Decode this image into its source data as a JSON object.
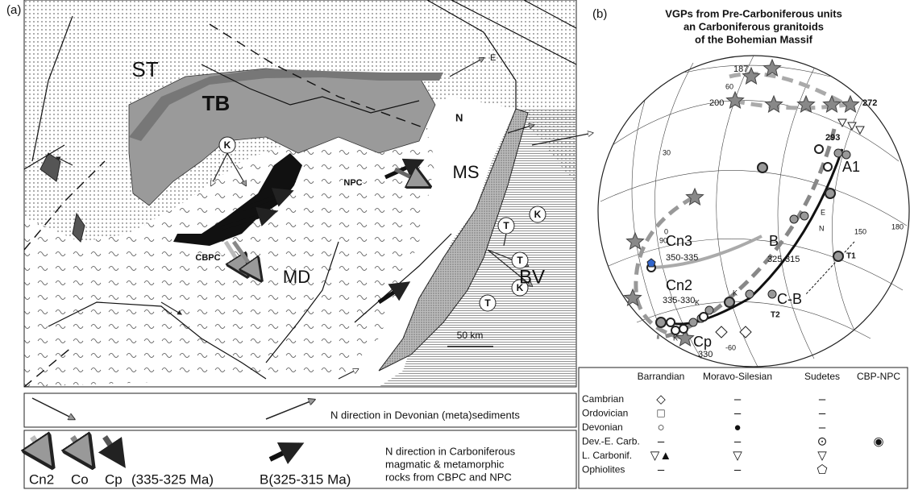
{
  "panel_a": {
    "label": "(a)",
    "regions": [
      "ST",
      "TB",
      "MS",
      "BV",
      "MD",
      "CBPC",
      "NPC"
    ],
    "arrow_labels": [
      "E",
      "N"
    ],
    "site_markers": [
      "K",
      "K",
      "K",
      "T",
      "T",
      "T"
    ],
    "scale": "50 km"
  },
  "panel_b": {
    "label": "(b)",
    "title": [
      "VGPs from Pre-Carboniferous units",
      "an Carboniferous granitoids",
      "of the Bohemian Massif"
    ],
    "age_labels": [
      "187",
      "200",
      "272",
      "293"
    ],
    "paths": [
      "Cn3",
      "350-335",
      "B",
      "325-315",
      "A1",
      "Cn2",
      "335-330",
      "C-B",
      "Cp",
      "330"
    ],
    "grid_labels": [
      "60",
      "30",
      "0",
      "90",
      "150",
      "180",
      "-60"
    ],
    "point_labels": [
      "E",
      "N",
      "T1",
      "T2",
      "K",
      "K",
      "K"
    ]
  },
  "legend_a": {
    "row1": "N direction in Devonian (meta)sediments",
    "row2": [
      "Cn2",
      "Co",
      "Cp",
      "(335-325 Ma)",
      "B(325-315 Ma)"
    ],
    "row2_text": [
      "N direction in Carboniferous",
      "magmatic & metamorphic",
      "rocks from CBPC and NPC"
    ]
  },
  "legend_b": {
    "header": [
      "Barrandian",
      "Moravo-Silesian",
      "Sudetes",
      "CBP-NPC"
    ],
    "rows": [
      {
        "name": "Cambrian",
        "cells": [
          "◇",
          "–",
          "–",
          null
        ]
      },
      {
        "name": "Ordovician",
        "cells": [
          "□",
          "–",
          "–",
          null
        ]
      },
      {
        "name": "Devonian",
        "cells": [
          "○",
          "●",
          "–",
          null
        ]
      },
      {
        "name": "Dev.-E. Carb.",
        "cells": [
          "–",
          "–",
          "⊙",
          "◉"
        ]
      },
      {
        "name": "L. Carbonif.",
        "cells": [
          "▽▲",
          "▽",
          "▽",
          null
        ]
      },
      {
        "name": "Ophiolites",
        "cells": [
          "–",
          "–",
          "⬠",
          null
        ]
      }
    ]
  }
}
